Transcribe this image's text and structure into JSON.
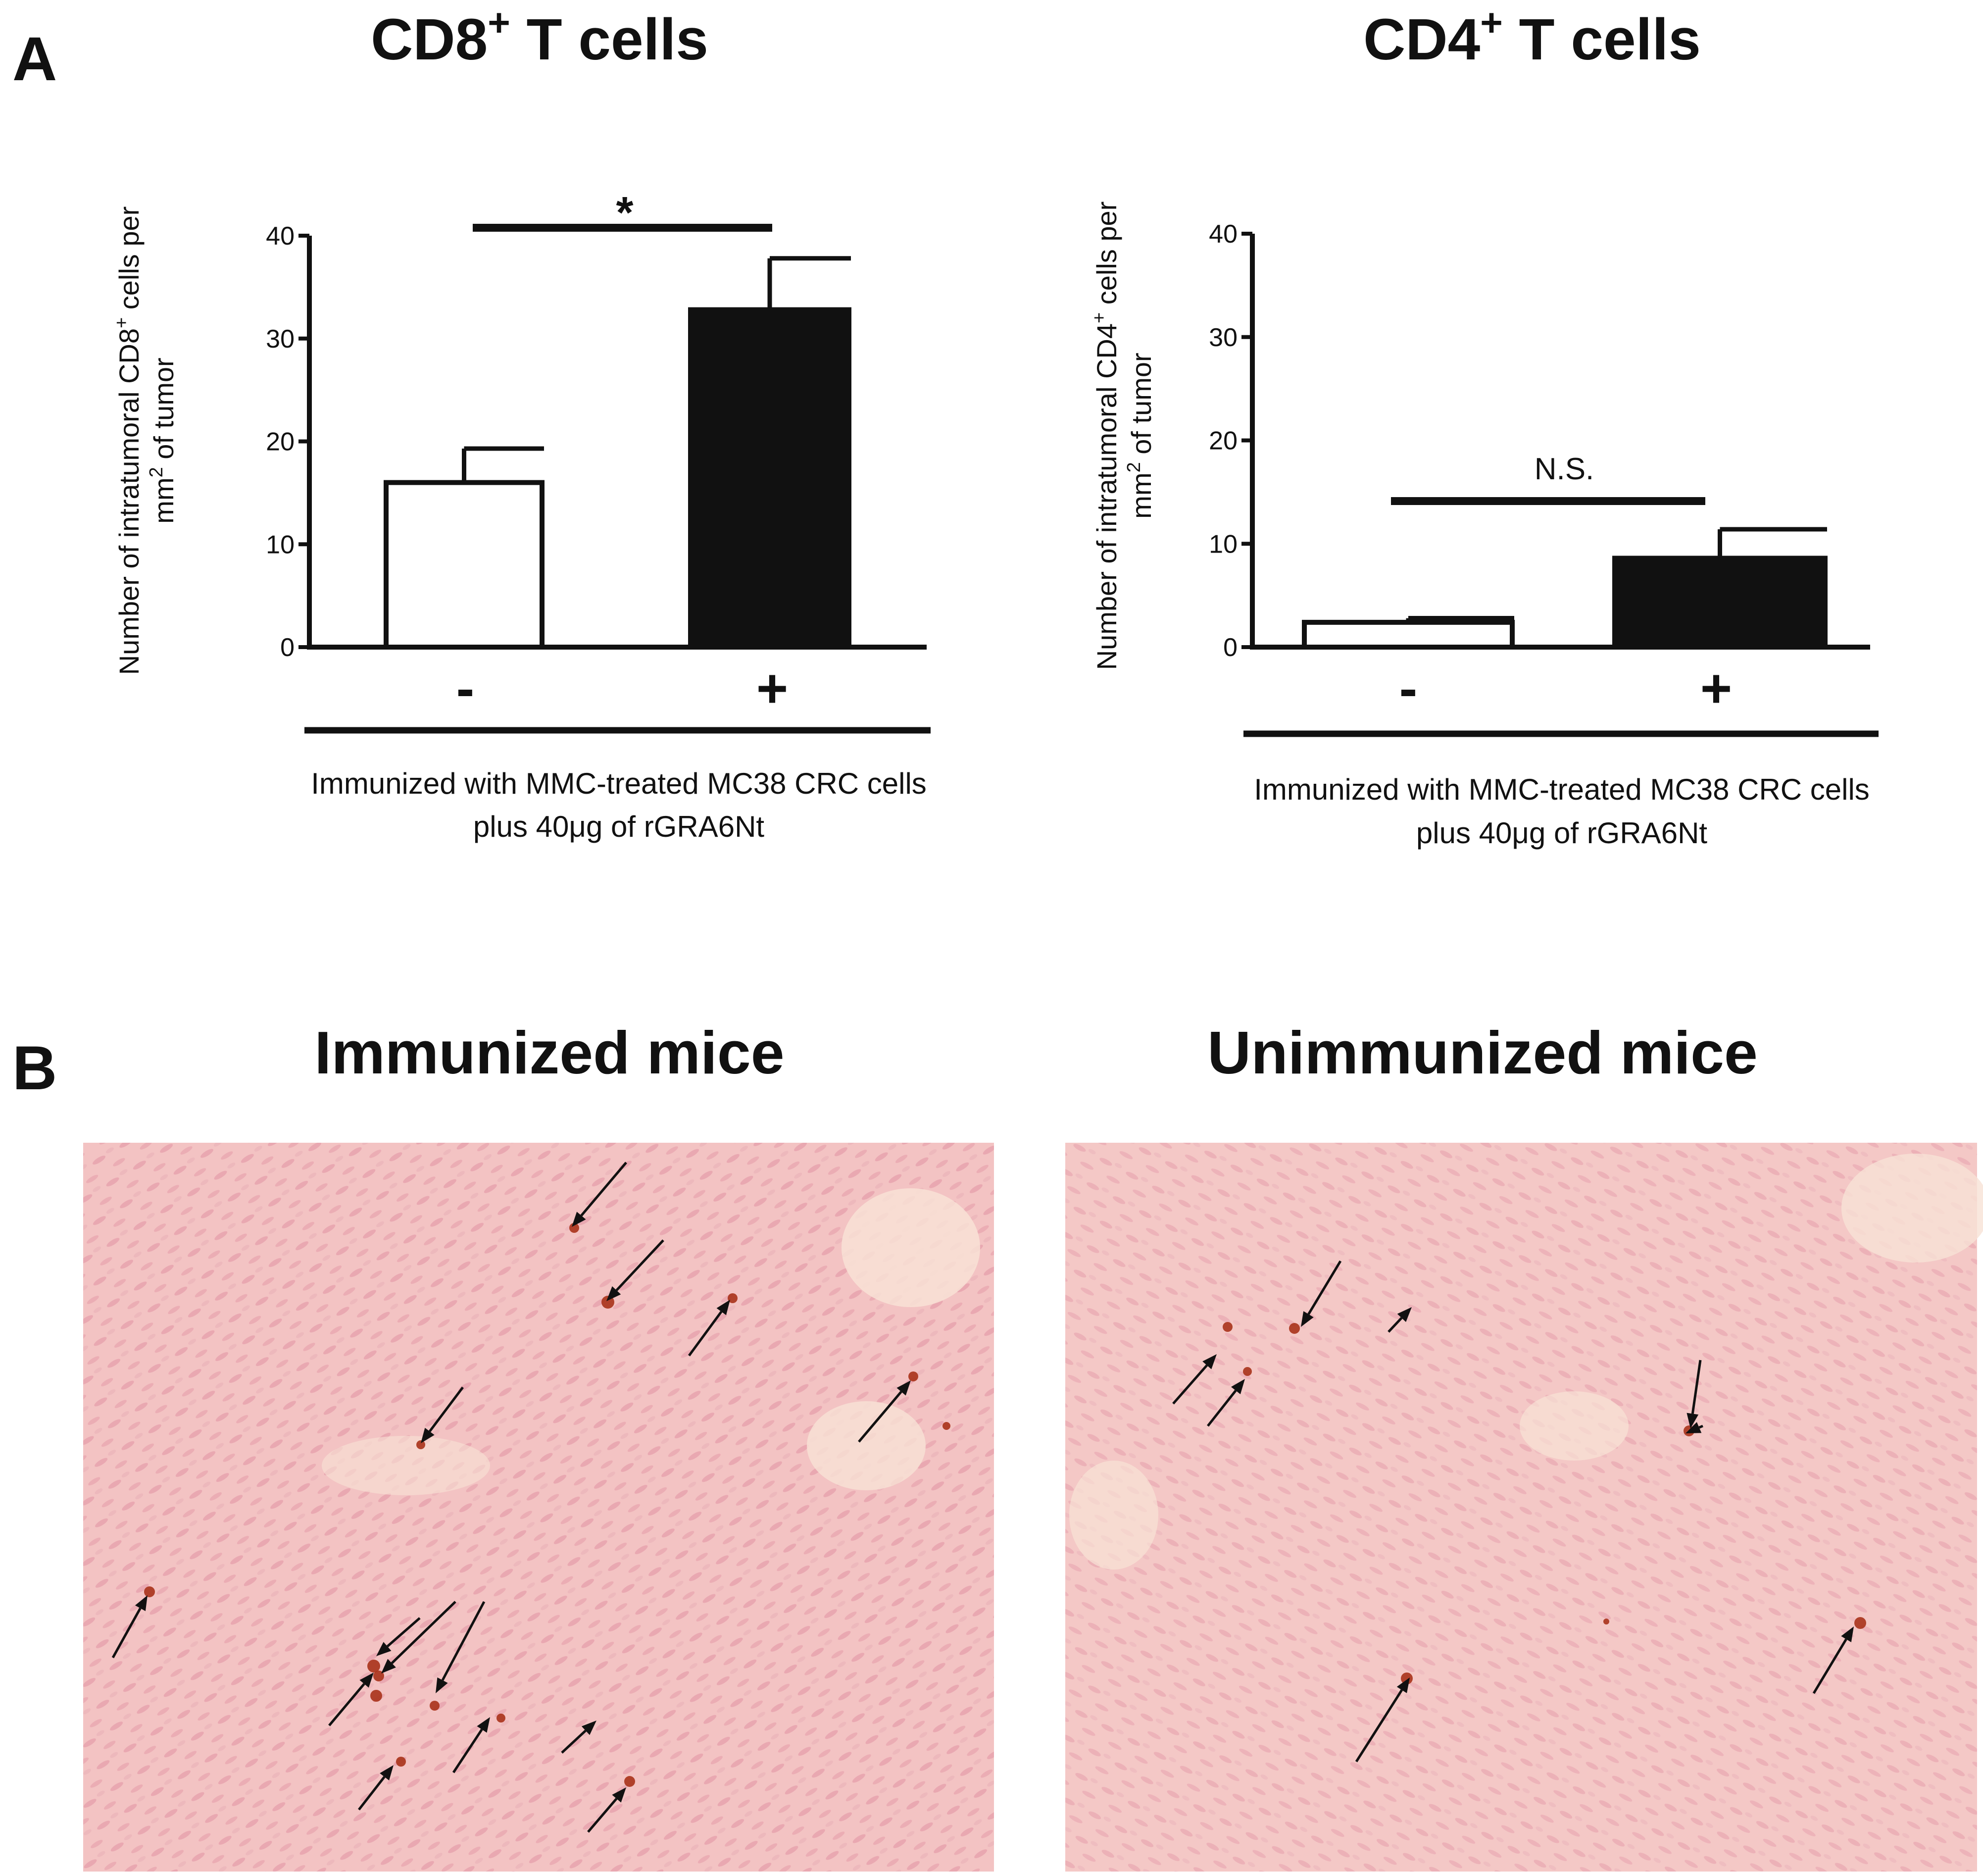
{
  "panel_a": {
    "letter": "A"
  },
  "panel_b": {
    "letter": "B",
    "micrographs": [
      {
        "title": "Immunized mice",
        "tissue_color": "#f3c3c3",
        "nuclei_color": "#e49aa8",
        "stain_color": "#a8321a",
        "arrow_count": 14
      },
      {
        "title": "Unimmunized mice",
        "tissue_color": "#f4c8c6",
        "nuclei_color": "#e6a2ae",
        "stain_color": "#a8321a",
        "arrow_count": 8
      }
    ]
  },
  "colors": {
    "ink": "#111111",
    "bar_negative": "#ffffff",
    "bar_positive": "#111111"
  },
  "chart_data": [
    {
      "type": "bar",
      "title": "CD8",
      "title_sup": "+",
      "title_suffix": " T cells",
      "categories": [
        "-",
        "+"
      ],
      "values": [
        16,
        32.8
      ],
      "errors": [
        3.3,
        5.0
      ],
      "ylabel_line1_pre": "Number of intratumoral CD8",
      "ylabel_line1_sup": "+",
      "ylabel_line1_post": " cells per",
      "ylabel_line2_pre": "mm",
      "ylabel_line2_sup": "2",
      "ylabel_line2_post": " of tumor",
      "ylim": [
        0,
        40
      ],
      "yticks": [
        "0",
        "10",
        "20",
        "30",
        "40"
      ],
      "significance": "*",
      "group_label_line1": "Immunized with MMC-treated MC38 CRC cells",
      "group_label_line2": "plus 40μg of rGRA6Nt"
    },
    {
      "type": "bar",
      "title": "CD4",
      "title_sup": "+",
      "title_suffix": " T cells",
      "categories": [
        "-",
        "+"
      ],
      "values": [
        2.4,
        8.6
      ],
      "errors": [
        0.4,
        2.8
      ],
      "ylabel_line1_pre": "Number of intratumoral CD4",
      "ylabel_line1_sup": "+",
      "ylabel_line1_post": " cells per",
      "ylabel_line2_pre": "mm",
      "ylabel_line2_sup": "2",
      "ylabel_line2_post": " of tumor",
      "ylim": [
        0,
        40
      ],
      "yticks": [
        "0",
        "10",
        "20",
        "30",
        "40"
      ],
      "significance": "N.S.",
      "group_label_line1": "Immunized with MMC-treated MC38 CRC cells",
      "group_label_line2": "plus 40μg of rGRA6Nt"
    }
  ]
}
